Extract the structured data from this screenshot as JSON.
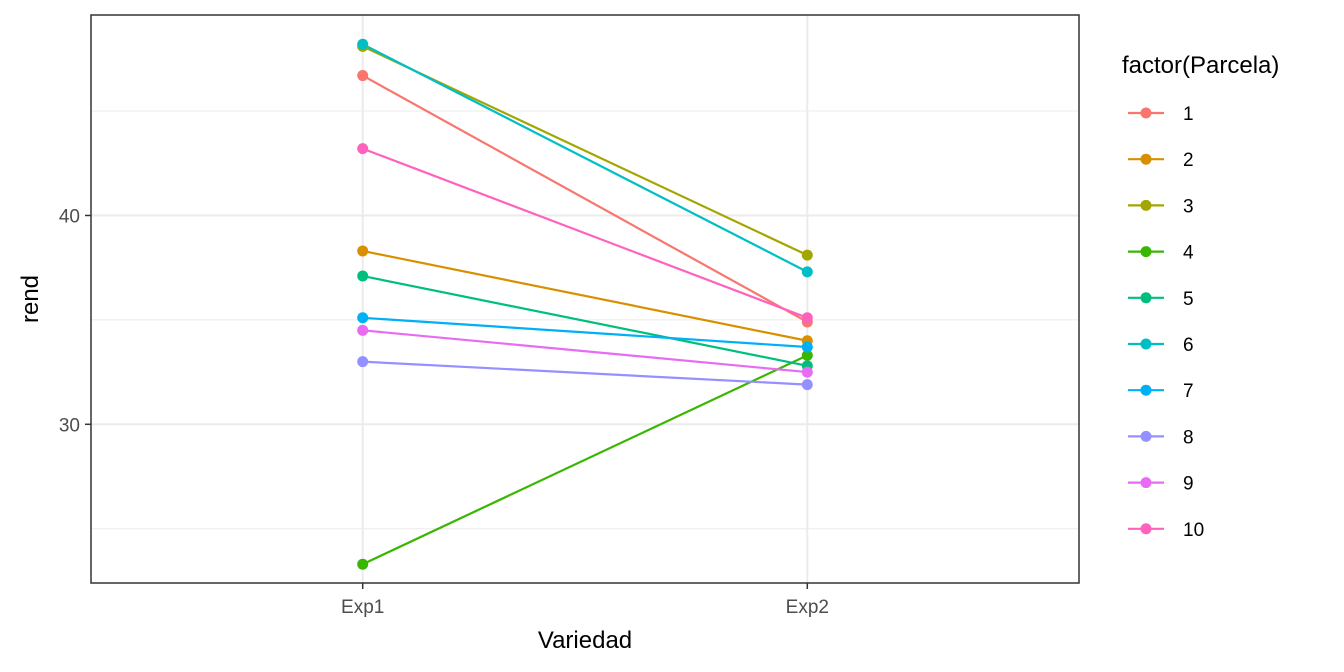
{
  "chart_data": {
    "type": "line",
    "title": "",
    "xlabel": "Variedad",
    "ylabel": "rend",
    "categories": [
      "Exp1",
      "Exp2"
    ],
    "ylim": [
      22.4,
      49.6
    ],
    "y_ticks": [
      30,
      40
    ],
    "y_tick_labels": [
      "30",
      "40"
    ],
    "y_minor_ticks": [
      25,
      35,
      45
    ],
    "grid": true,
    "legend_title": "factor(Parcela)",
    "legend_position": "right",
    "series": [
      {
        "name": "1",
        "color": "#F8766D",
        "values": [
          46.7,
          34.9
        ]
      },
      {
        "name": "2",
        "color": "#D89000",
        "values": [
          38.3,
          34.0
        ]
      },
      {
        "name": "3",
        "color": "#A3A500",
        "values": [
          48.1,
          38.1
        ]
      },
      {
        "name": "4",
        "color": "#39B600",
        "values": [
          23.3,
          33.3
        ]
      },
      {
        "name": "5",
        "color": "#00BF7D",
        "values": [
          37.1,
          32.8
        ]
      },
      {
        "name": "6",
        "color": "#00BFC4",
        "values": [
          48.2,
          37.3
        ]
      },
      {
        "name": "7",
        "color": "#00B0F6",
        "values": [
          35.1,
          33.7
        ]
      },
      {
        "name": "8",
        "color": "#9590FF",
        "values": [
          33.0,
          31.9
        ]
      },
      {
        "name": "9",
        "color": "#E76BF3",
        "values": [
          34.5,
          32.5
        ]
      },
      {
        "name": "10",
        "color": "#FF62BC",
        "values": [
          43.2,
          35.1
        ]
      }
    ]
  }
}
